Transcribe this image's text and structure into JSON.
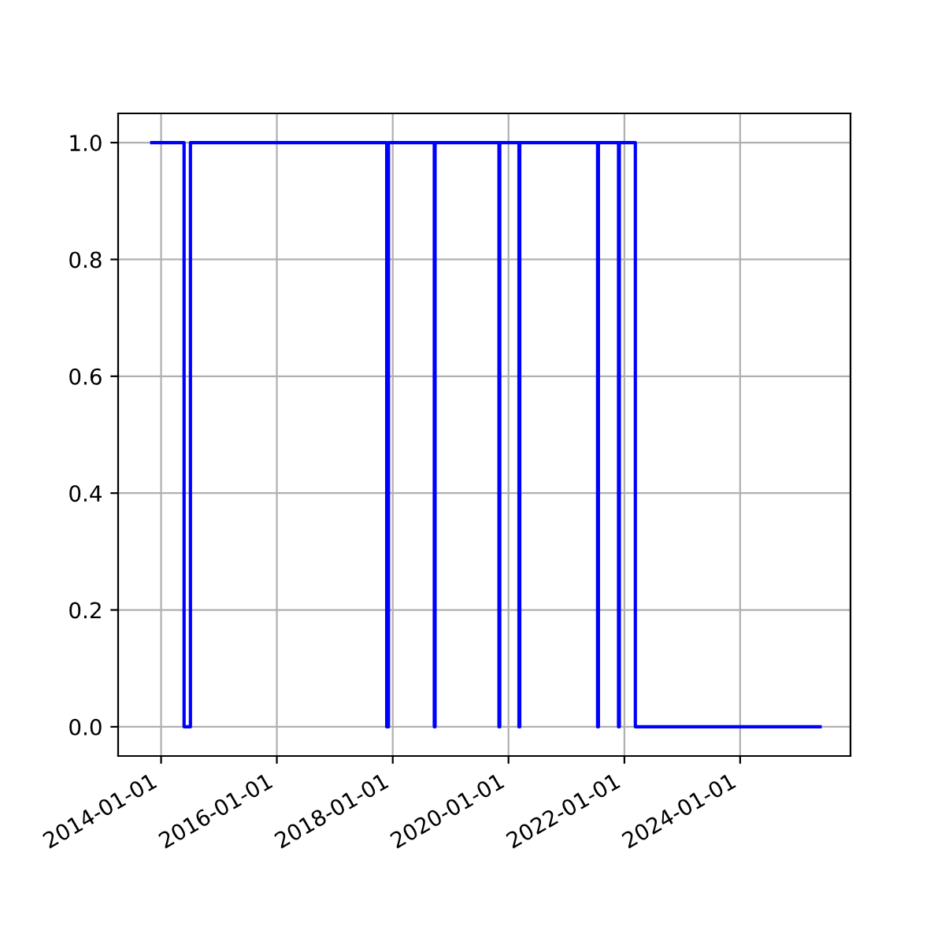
{
  "chart_data": {
    "type": "step",
    "color": "#0000ff",
    "grid": true,
    "line_style": "solid",
    "x": [
      "2013-11-03",
      "2014-05-26",
      "2014-07-05",
      "2017-11-24",
      "2017-12-05",
      "2018-09-20",
      "2018-09-25",
      "2019-11-02",
      "2019-11-07",
      "2020-03-07",
      "2020-03-12",
      "2021-07-16",
      "2021-07-21",
      "2021-11-25",
      "2021-11-30",
      "2022-03-11",
      "2025-05-19"
    ],
    "values": [
      1,
      0,
      1,
      0,
      1,
      0,
      1,
      0,
      1,
      0,
      1,
      0,
      1,
      0,
      1,
      0,
      0
    ],
    "xlim": [
      "2013-04-05",
      "2025-11-27"
    ],
    "xticks": [
      {
        "value": "2014-01-01",
        "label": "2014-01-01"
      },
      {
        "value": "2016-01-01",
        "label": "2016-01-01"
      },
      {
        "value": "2018-01-01",
        "label": "2018-01-01"
      },
      {
        "value": "2020-01-01",
        "label": "2020-01-01"
      },
      {
        "value": "2022-01-01",
        "label": "2022-01-01"
      },
      {
        "value": "2024-01-01",
        "label": "2024-01-01"
      }
    ],
    "ylim": [
      -0.05,
      1.05
    ],
    "yticks": [
      {
        "value": 0,
        "label": "0.0"
      },
      {
        "value": 0.2,
        "label": "0.2"
      },
      {
        "value": 0.4,
        "label": "0.4"
      },
      {
        "value": 0.6,
        "label": "0.6"
      },
      {
        "value": 0.8,
        "label": "0.8"
      },
      {
        "value": 1,
        "label": "1.0"
      }
    ]
  }
}
